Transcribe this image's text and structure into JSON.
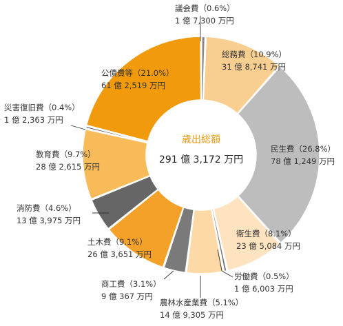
{
  "chart_data": {
    "type": "pie",
    "variant": "donut",
    "center_title": "歳出総額",
    "center_total": "291 億 3,172 万円",
    "slices": [
      {
        "name": "議会費",
        "pct": 0.6,
        "pct_label": "（0.6%）",
        "amount": "1 億 7,300 万円",
        "color": "#888888"
      },
      {
        "name": "総務費",
        "pct": 10.9,
        "pct_label": "（10.9%）",
        "amount": "31 億 8,741 万円",
        "color": "#f9cf91"
      },
      {
        "name": "民生費",
        "pct": 26.8,
        "pct_label": "（26.8%）",
        "amount": "78 億 1,249 万円",
        "color": "#bdbdbd"
      },
      {
        "name": "衛生費",
        "pct": 8.1,
        "pct_label": "（8.1%）",
        "amount": "23 億 5,084 万円",
        "color": "#fde3c0"
      },
      {
        "name": "労働費",
        "pct": 0.5,
        "pct_label": "（0.5%）",
        "amount": "1 億 6,003 万円",
        "color": "#7a7a7a"
      },
      {
        "name": "農林水産業費",
        "pct": 5.1,
        "pct_label": "（5.1%）",
        "amount": "14 億 9,305 万円",
        "color": "#fcd9a6"
      },
      {
        "name": "商工費",
        "pct": 3.1,
        "pct_label": "（3.1%）",
        "amount": "9 億 367 万円",
        "color": "#7a7a7a"
      },
      {
        "name": "土木費",
        "pct": 9.1,
        "pct_label": "（9.1%）",
        "amount": "26 億 3,651 万円",
        "color": "#f4a12a"
      },
      {
        "name": "消防費",
        "pct": 4.6,
        "pct_label": "（4.6%）",
        "amount": "13 億 3,975 万円",
        "color": "#666666"
      },
      {
        "name": "教育費",
        "pct": 9.7,
        "pct_label": "（9.7%）",
        "amount": "28 億 2,615 万円",
        "color": "#f8bb5a"
      },
      {
        "name": "災害復旧費",
        "pct": 0.4,
        "pct_label": "（0.4%）",
        "amount": "1 億 2,363 万円",
        "color": "#555555"
      },
      {
        "name": "公債費等",
        "pct": 21.0,
        "pct_label": "（21.0%）",
        "amount": "61 億 2,519 万円",
        "color": "#f09a0c"
      }
    ]
  }
}
